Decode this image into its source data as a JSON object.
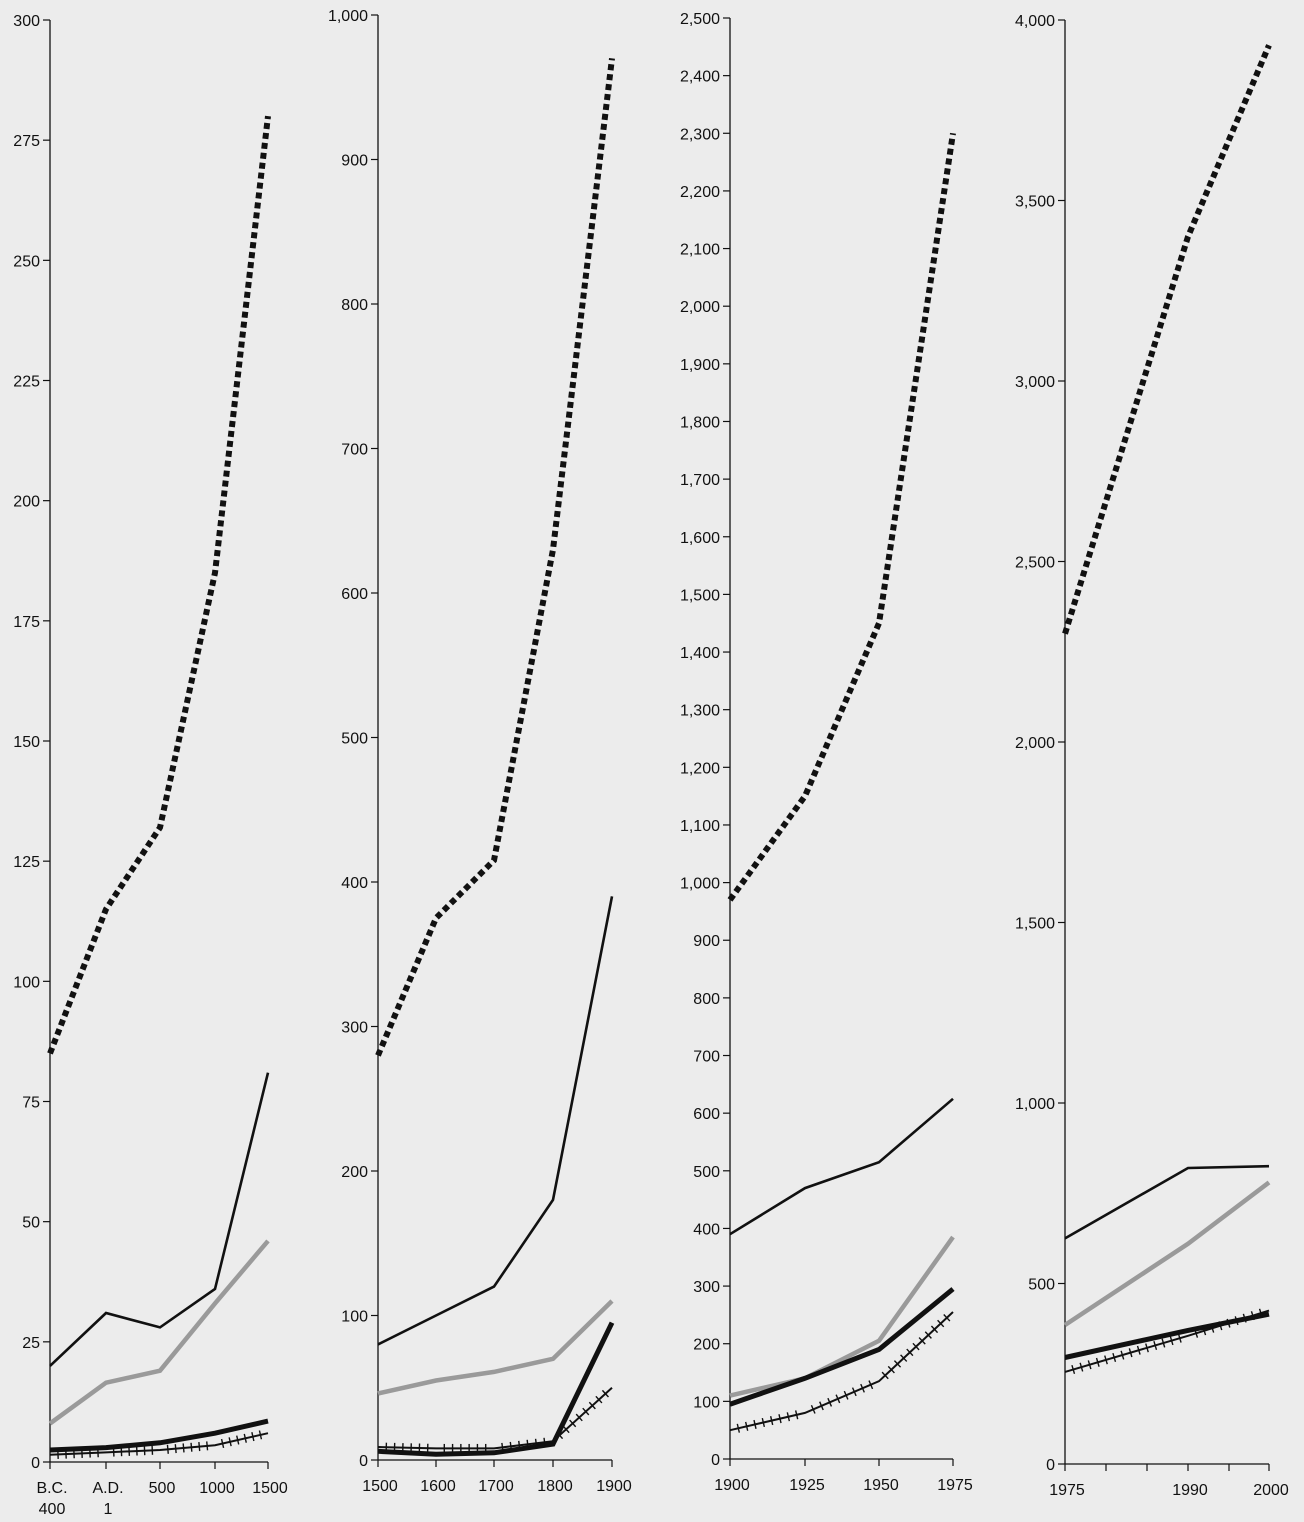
{
  "colors": {
    "background": "#ececec",
    "total": "#111111",
    "series_a": "#111111",
    "series_b": "#9a9a9a",
    "series_c": "#111111",
    "series_d": "#111111"
  },
  "chart_data": [
    {
      "type": "line",
      "x_tick_labels": [
        [
          "B.C.",
          "400"
        ],
        [
          "A.D.",
          "1"
        ],
        [
          "500"
        ],
        [
          "1000"
        ],
        [
          "1500"
        ]
      ],
      "y_tick_labels": [
        "0",
        "25",
        "50",
        "75",
        "100",
        "125",
        "150",
        "175",
        "200",
        "225",
        "250",
        "275",
        "300"
      ],
      "ylim": [
        0,
        300
      ],
      "series": [
        {
          "style": "dotted-heavy",
          "values": [
            85,
            115,
            132,
            185,
            280
          ]
        },
        {
          "style": "thin-black",
          "values": [
            20,
            31,
            28,
            36,
            81
          ]
        },
        {
          "style": "gray",
          "values": [
            8,
            16.5,
            19,
            33,
            46
          ]
        },
        {
          "style": "heavy-black",
          "values": [
            2.5,
            3,
            4,
            6,
            8.5
          ]
        },
        {
          "style": "hatched",
          "values": [
            1.5,
            2,
            2.5,
            3.5,
            6
          ]
        }
      ]
    },
    {
      "type": "line",
      "x_tick_labels": [
        [
          "1500"
        ],
        [
          "1600"
        ],
        [
          "1700"
        ],
        [
          "1800"
        ],
        [
          "1900"
        ]
      ],
      "y_tick_labels": [
        "0",
        "100",
        "200",
        "300",
        "400",
        "500",
        "600",
        "700",
        "800",
        "900",
        "1,000"
      ],
      "ylim": [
        0,
        1000
      ],
      "series": [
        {
          "style": "dotted-heavy",
          "values": [
            280,
            375,
            415,
            630,
            970
          ]
        },
        {
          "style": "thin-black",
          "values": [
            80,
            100,
            120,
            180,
            390
          ]
        },
        {
          "style": "gray",
          "values": [
            46,
            55,
            61,
            70,
            110
          ]
        },
        {
          "style": "heavy-black",
          "values": [
            6,
            4,
            5,
            11,
            95
          ]
        },
        {
          "style": "hatched",
          "values": [
            9,
            8,
            8,
            13,
            50
          ]
        }
      ]
    },
    {
      "type": "line",
      "x_tick_labels": [
        [
          "1900"
        ],
        [
          "1925"
        ],
        [
          "1950"
        ],
        [
          "1975"
        ]
      ],
      "y_tick_labels": [
        "0",
        "100",
        "200",
        "300",
        "400",
        "500",
        "600",
        "700",
        "800",
        "900",
        "1,000",
        "1,100",
        "1,200",
        "1,300",
        "1,400",
        "1,500",
        "1,600",
        "1,700",
        "1,800",
        "1,900",
        "2,000",
        "2,100",
        "2,200",
        "2,300",
        "2,400",
        "2,500"
      ],
      "ylim": [
        0,
        2500
      ],
      "series": [
        {
          "style": "dotted-heavy",
          "values": [
            970,
            1150,
            1450,
            2300
          ]
        },
        {
          "style": "thin-black",
          "values": [
            390,
            470,
            515,
            625
          ]
        },
        {
          "style": "gray",
          "values": [
            110,
            140,
            205,
            385
          ]
        },
        {
          "style": "heavy-black",
          "values": [
            95,
            140,
            190,
            295
          ]
        },
        {
          "style": "hatched",
          "values": [
            50,
            80,
            135,
            255
          ]
        }
      ]
    },
    {
      "type": "line",
      "x_tick_labels": [
        [
          "1975"
        ],
        [
          ""
        ],
        [
          ""
        ],
        [
          "1990"
        ],
        [
          ""
        ],
        [
          "2000"
        ]
      ],
      "y_tick_labels": [
        "0",
        "500",
        "1,000",
        "1,500",
        "2,000",
        "2,500",
        "3,000",
        "3,500",
        "4,000"
      ],
      "ylim": [
        0,
        4000
      ],
      "series": [
        {
          "style": "dotted-heavy",
          "values": [
            2300,
            3400,
            3930
          ]
        },
        {
          "style": "thin-black",
          "values": [
            625,
            820,
            825
          ]
        },
        {
          "style": "gray",
          "values": [
            385,
            610,
            780
          ]
        },
        {
          "style": "heavy-black",
          "values": [
            295,
            370,
            415
          ]
        },
        {
          "style": "hatched",
          "values": [
            255,
            355,
            425
          ]
        }
      ]
    }
  ]
}
